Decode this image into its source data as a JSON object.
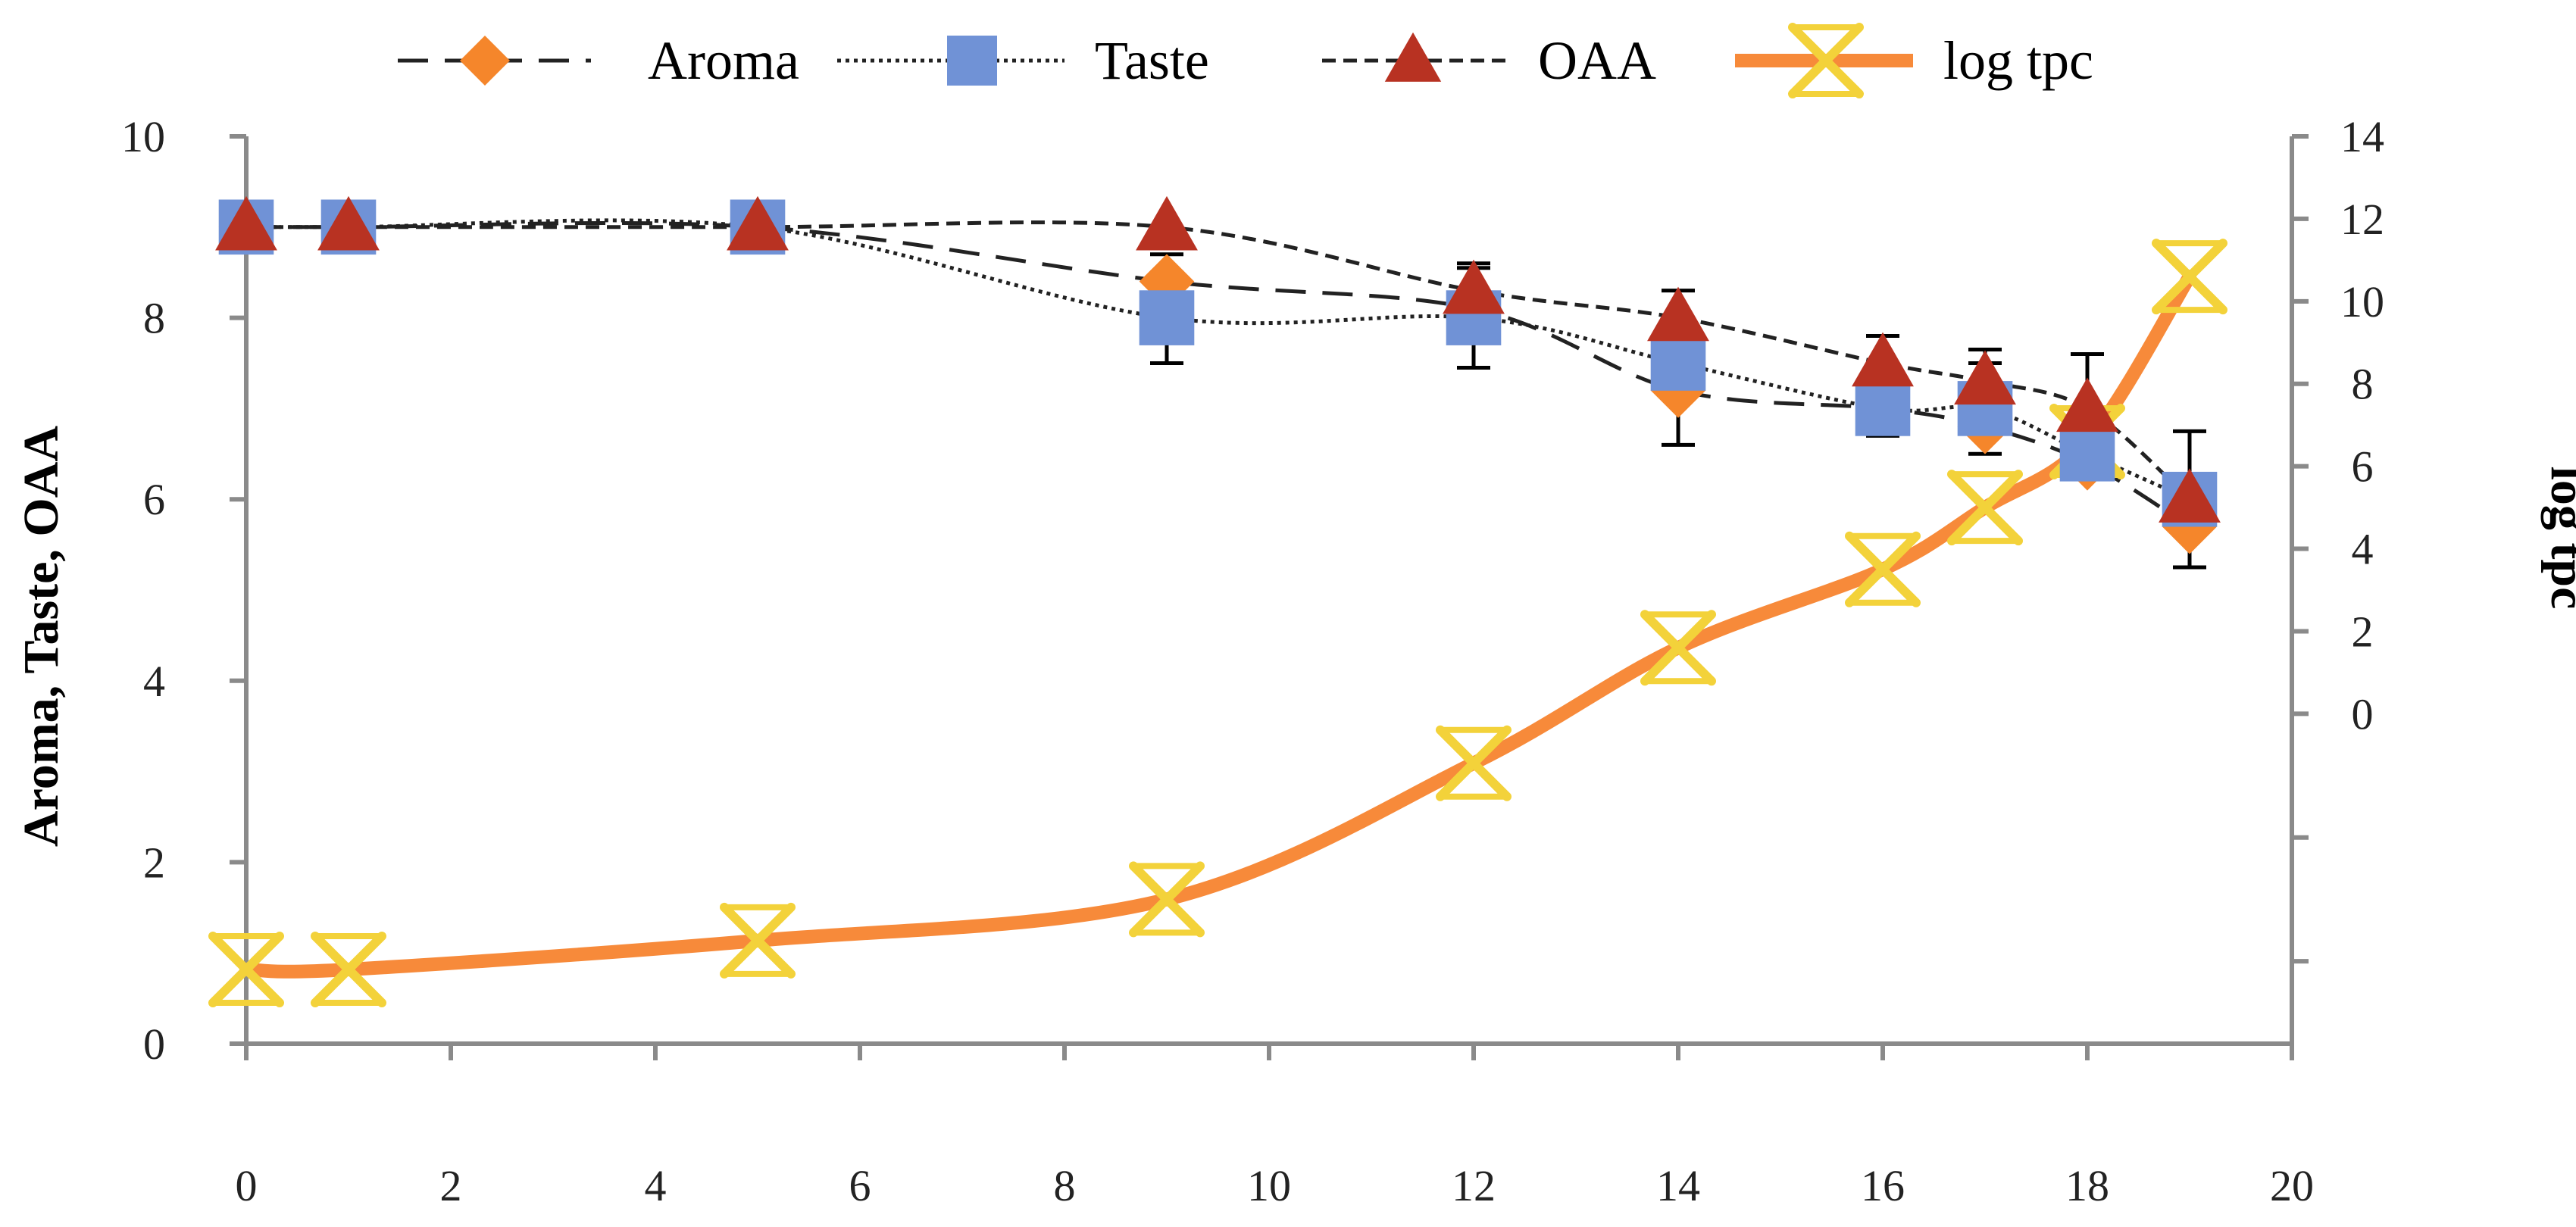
{
  "chart_data": {
    "type": "line",
    "title": "",
    "xlabel": "",
    "ylabel_left": "Aroma,  Taste,  OAA",
    "ylabel_right": "log tpc",
    "xlim": [
      0,
      20
    ],
    "ylim_left": [
      0,
      10
    ],
    "ylim_right": [
      -8,
      14
    ],
    "x_ticks": [
      "0",
      "2",
      "4",
      "6",
      "8",
      "10",
      "12",
      "14",
      "16",
      "18",
      "20"
    ],
    "y_left_ticks": [
      "0",
      "2",
      "4",
      "6",
      "8",
      "10"
    ],
    "y_right_ticks": [
      "0",
      "2",
      "4",
      "6",
      "8",
      "10",
      "12",
      "14"
    ],
    "y_right_tick_values": [
      0,
      2,
      4,
      6,
      8,
      10,
      12,
      14
    ],
    "y_right_minor_values": [
      -6,
      -3
    ],
    "legend": {
      "position": "top",
      "entries": [
        "Aroma",
        "Taste",
        "OAA",
        "log tpc"
      ]
    },
    "series": [
      {
        "name": "Aroma",
        "axis": "left",
        "marker": "diamond",
        "line": "dashed",
        "color": "#f5862b",
        "line_color": "#222222",
        "x": [
          0,
          1,
          5,
          9,
          12,
          14,
          16,
          17,
          18,
          19
        ],
        "values": [
          9,
          9,
          9,
          8.4,
          8.1,
          7.2,
          7,
          6.8,
          6.4,
          5.7
        ],
        "error": [
          0,
          0,
          0,
          0.3,
          0,
          0.6,
          0,
          0,
          0,
          0
        ]
      },
      {
        "name": "Taste",
        "axis": "left",
        "marker": "square",
        "line": "dotted",
        "color": "#7092d6",
        "line_color": "#222222",
        "x": [
          0,
          1,
          5,
          9,
          12,
          14,
          16,
          17,
          18,
          19
        ],
        "values": [
          9,
          9,
          9,
          8,
          8,
          7.5,
          7,
          7,
          6.5,
          6
        ],
        "error": [
          0,
          0,
          0,
          0.5,
          0.55,
          0,
          0.3,
          0.5,
          0,
          0
        ]
      },
      {
        "name": "OAA",
        "axis": "left",
        "marker": "triangle",
        "line": "dashed",
        "color": "#b83222",
        "line_color": "#222222",
        "x": [
          0,
          1,
          5,
          9,
          12,
          14,
          16,
          17,
          18,
          19
        ],
        "values": [
          9,
          9,
          9,
          9,
          8.3,
          8,
          7.5,
          7.3,
          7,
          6
        ],
        "error": [
          0,
          0,
          0,
          0,
          0.3,
          0.3,
          0.3,
          0.35,
          0.6,
          0.75
        ]
      },
      {
        "name": "log tpc",
        "axis": "right",
        "marker": "x-star",
        "line": "solid",
        "color": "#f78a3a",
        "marker_color": "#f3d23a",
        "x": [
          0,
          1,
          5,
          9,
          12,
          14,
          16,
          17,
          18,
          19
        ],
        "values": [
          -6.2,
          -6.2,
          -5.5,
          -4.5,
          -1.2,
          1.6,
          3.5,
          5,
          6.6,
          10.6
        ],
        "error": [
          0,
          0,
          0,
          0,
          0,
          0,
          0,
          0,
          0,
          0
        ]
      }
    ]
  }
}
